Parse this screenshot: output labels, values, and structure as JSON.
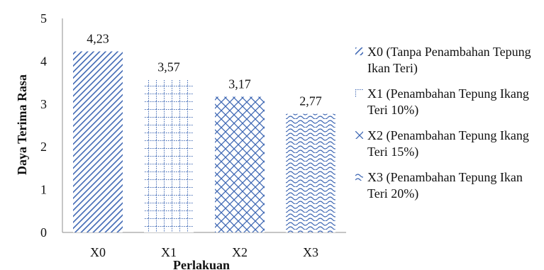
{
  "chart_data": {
    "type": "bar",
    "title": "",
    "xlabel": "Perlakuan",
    "ylabel": "Daya Terima Rasa",
    "categories": [
      "X0",
      "X1",
      "X2",
      "X3"
    ],
    "values": [
      4.23,
      3.57,
      3.17,
      2.77
    ],
    "data_labels": [
      "4,23",
      "3,57",
      "3,17",
      "2,77"
    ],
    "ylim": [
      0,
      5
    ],
    "yticks": [
      "0",
      "1",
      "2",
      "3",
      "4",
      "5"
    ],
    "grid": false,
    "legend_position": "right",
    "color": "#3f68b4",
    "patterns": [
      "diagonal-stripes",
      "grid",
      "diamond-lattice",
      "waves"
    ],
    "series": [
      {
        "name": "X0 (Tanpa Penambahan Tepung Ikan Teri)"
      },
      {
        "name": "X1 (Penambahan Tepung Ikang Teri 10%)"
      },
      {
        "name": "X2 (Penambahan Tepung Ikang Teri 15%)"
      },
      {
        "name": "X3 (Penambahan Tepung Ikan Teri 20%)"
      }
    ]
  }
}
